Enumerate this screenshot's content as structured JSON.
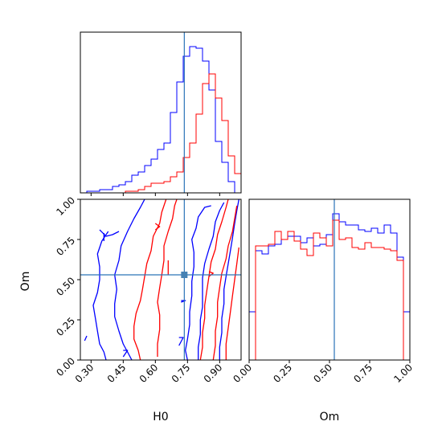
{
  "chart_data": [
    {
      "type": "histogram",
      "panel": "H0 marginal",
      "x": [
        0.25,
        0.28,
        0.31,
        0.34,
        0.37,
        0.4,
        0.43,
        0.46,
        0.49,
        0.52,
        0.55,
        0.58,
        0.61,
        0.64,
        0.67,
        0.7,
        0.73,
        0.76,
        0.79,
        0.82,
        0.85,
        0.88,
        0.91,
        0.94,
        0.97
      ],
      "xlim": [
        0.25,
        1.0
      ],
      "ylim": [
        0,
        1.0
      ],
      "truth_x": 0.735,
      "colors": {
        "series_a": "#0000ff",
        "series_b": "#ff0000",
        "truth": "#2a73b8"
      },
      "series": [
        {
          "values": [
            0.0,
            0.01,
            0.01,
            0.02,
            0.02,
            0.04,
            0.05,
            0.07,
            0.11,
            0.13,
            0.17,
            0.21,
            0.27,
            0.31,
            0.5,
            0.69,
            0.85,
            0.91,
            0.9,
            0.82,
            0.64,
            0.32,
            0.19,
            0.07,
            0.0
          ]
        },
        {
          "values": [
            0.0,
            0.0,
            0.0,
            0.0,
            0.0,
            0.0,
            0.0,
            0.01,
            0.01,
            0.02,
            0.04,
            0.06,
            0.06,
            0.07,
            0.1,
            0.13,
            0.22,
            0.31,
            0.49,
            0.68,
            0.74,
            0.59,
            0.45,
            0.23,
            0.12
          ]
        }
      ]
    },
    {
      "type": "contour",
      "panel": "H0 vs Om joint",
      "xlabel": "H0",
      "ylabel": "Om",
      "xlim": [
        0.25,
        1.0
      ],
      "ylim": [
        0.0,
        1.0
      ],
      "xticks": [
        "0.30",
        "0.45",
        "0.60",
        "0.75",
        "0.90"
      ],
      "xtick_values": [
        0.3,
        0.45,
        0.6,
        0.75,
        0.9
      ],
      "yticks": [
        "0.00",
        "0.25",
        "0.50",
        "0.75",
        "1.00"
      ],
      "ytick_values": [
        0.0,
        0.25,
        0.5,
        0.75,
        1.0
      ],
      "truth_point": [
        0.735,
        0.53
      ],
      "series": [
        {
          "color": "#0000ff",
          "contours": [
            [
              [
                0.28,
                0.15
              ],
              [
                0.27,
                0.12
              ]
            ],
            [
              [
                0.49,
                0.0
              ],
              [
                0.47,
                0.05
              ],
              [
                0.45,
                0.1
              ],
              [
                0.43,
                0.18
              ],
              [
                0.41,
                0.27
              ],
              [
                0.41,
                0.35
              ],
              [
                0.42,
                0.44
              ],
              [
                0.41,
                0.53
              ],
              [
                0.43,
                0.62
              ],
              [
                0.44,
                0.71
              ],
              [
                0.47,
                0.8
              ],
              [
                0.5,
                0.88
              ],
              [
                0.53,
                0.95
              ],
              [
                0.55,
                1.0
              ]
            ],
            [
              [
                0.37,
                0.0
              ],
              [
                0.36,
                0.05
              ],
              [
                0.34,
                0.1
              ],
              [
                0.33,
                0.18
              ],
              [
                0.32,
                0.26
              ],
              [
                0.31,
                0.34
              ],
              [
                0.33,
                0.42
              ],
              [
                0.34,
                0.5
              ],
              [
                0.34,
                0.58
              ],
              [
                0.33,
                0.66
              ],
              [
                0.35,
                0.74
              ],
              [
                0.38,
                0.8
              ]
            ],
            [
              [
                0.34,
                0.81
              ],
              [
                0.37,
                0.77
              ],
              [
                0.4,
                0.78
              ],
              [
                0.43,
                0.8
              ]
            ],
            [
              [
                0.36,
                0.74
              ],
              [
                0.36,
                0.79
              ]
            ],
            [
              [
                0.75,
                0.0
              ],
              [
                0.74,
                0.06
              ],
              [
                0.75,
                0.13
              ],
              [
                0.76,
                0.22
              ],
              [
                0.76,
                0.3
              ],
              [
                0.77,
                0.4
              ],
              [
                0.77,
                0.49
              ],
              [
                0.78,
                0.58
              ],
              [
                0.78,
                0.67
              ],
              [
                0.77,
                0.75
              ],
              [
                0.79,
                0.82
              ],
              [
                0.8,
                0.89
              ],
              [
                0.83,
                0.95
              ],
              [
                0.86,
                0.96
              ]
            ],
            [
              [
                0.8,
                0.0
              ],
              [
                0.8,
                0.08
              ],
              [
                0.81,
                0.16
              ],
              [
                0.81,
                0.25
              ],
              [
                0.82,
                0.33
              ],
              [
                0.82,
                0.42
              ],
              [
                0.82,
                0.51
              ],
              [
                0.83,
                0.6
              ],
              [
                0.85,
                0.69
              ],
              [
                0.87,
                0.77
              ],
              [
                0.88,
                0.86
              ],
              [
                0.9,
                0.93
              ],
              [
                0.92,
                0.98
              ]
            ],
            [
              [
                0.9,
                0.0
              ],
              [
                0.9,
                0.08
              ],
              [
                0.91,
                0.17
              ],
              [
                0.91,
                0.26
              ],
              [
                0.92,
                0.35
              ],
              [
                0.92,
                0.44
              ],
              [
                0.93,
                0.52
              ],
              [
                0.94,
                0.6
              ],
              [
                0.95,
                0.68
              ],
              [
                0.96,
                0.76
              ],
              [
                0.97,
                0.85
              ],
              [
                0.98,
                0.93
              ],
              [
                0.99,
                1.0
              ]
            ],
            [
              [
                0.72,
                0.36
              ],
              [
                0.74,
                0.37
              ],
              [
                0.72,
                0.37
              ]
            ],
            [
              [
                0.71,
                0.09
              ],
              [
                0.73,
                0.14
              ],
              [
                0.71,
                0.14
              ]
            ],
            [
              [
                0.45,
                0.02
              ],
              [
                0.47,
                0.06
              ],
              [
                0.45,
                0.06
              ]
            ]
          ]
        },
        {
          "color": "#ff0000",
          "contours": [
            [
              [
                0.53,
                0.0
              ],
              [
                0.52,
                0.06
              ],
              [
                0.5,
                0.13
              ],
              [
                0.5,
                0.21
              ],
              [
                0.51,
                0.29
              ],
              [
                0.53,
                0.37
              ],
              [
                0.54,
                0.44
              ],
              [
                0.55,
                0.52
              ],
              [
                0.56,
                0.6
              ],
              [
                0.58,
                0.68
              ],
              [
                0.59,
                0.77
              ],
              [
                0.62,
                0.85
              ],
              [
                0.63,
                0.92
              ],
              [
                0.65,
                1.0
              ]
            ],
            [
              [
                0.61,
                0.02
              ],
              [
                0.61,
                0.1
              ],
              [
                0.62,
                0.19
              ],
              [
                0.62,
                0.28
              ],
              [
                0.61,
                0.36
              ],
              [
                0.62,
                0.45
              ],
              [
                0.63,
                0.53
              ],
              [
                0.64,
                0.62
              ],
              [
                0.64,
                0.71
              ],
              [
                0.66,
                0.8
              ],
              [
                0.68,
                0.88
              ],
              [
                0.69,
                0.96
              ],
              [
                0.7,
                1.0
              ]
            ],
            [
              [
                0.66,
                0.53
              ],
              [
                0.66,
                0.62
              ]
            ],
            [
              [
                0.6,
                0.81
              ],
              [
                0.62,
                0.83
              ],
              [
                0.6,
                0.85
              ]
            ],
            [
              [
                0.81,
                0.0
              ],
              [
                0.82,
                0.08
              ],
              [
                0.82,
                0.17
              ],
              [
                0.83,
                0.26
              ],
              [
                0.83,
                0.34
              ],
              [
                0.84,
                0.43
              ],
              [
                0.85,
                0.52
              ],
              [
                0.86,
                0.61
              ],
              [
                0.88,
                0.69
              ],
              [
                0.89,
                0.78
              ],
              [
                0.91,
                0.86
              ],
              [
                0.93,
                0.95
              ],
              [
                0.94,
                1.0
              ]
            ],
            [
              [
                0.87,
                0.0
              ],
              [
                0.88,
                0.09
              ],
              [
                0.88,
                0.18
              ],
              [
                0.89,
                0.27
              ],
              [
                0.89,
                0.36
              ],
              [
                0.9,
                0.45
              ],
              [
                0.91,
                0.54
              ],
              [
                0.93,
                0.63
              ],
              [
                0.94,
                0.71
              ],
              [
                0.96,
                0.8
              ],
              [
                0.97,
                0.88
              ],
              [
                0.98,
                0.96
              ]
            ],
            [
              [
                0.93,
                0.0
              ],
              [
                0.93,
                0.1
              ],
              [
                0.94,
                0.2
              ],
              [
                0.95,
                0.3
              ],
              [
                0.96,
                0.4
              ],
              [
                0.97,
                0.5
              ],
              [
                0.98,
                0.6
              ],
              [
                0.99,
                0.7
              ]
            ],
            [
              [
                0.85,
                0.52
              ],
              [
                0.87,
                0.54
              ],
              [
                0.85,
                0.55
              ]
            ]
          ]
        }
      ]
    },
    {
      "type": "histogram",
      "panel": "Om marginal",
      "xlabel": "Om",
      "x": [
        0.0,
        0.04,
        0.08,
        0.12,
        0.16,
        0.2,
        0.24,
        0.28,
        0.32,
        0.36,
        0.4,
        0.44,
        0.48,
        0.52,
        0.56,
        0.6,
        0.64,
        0.68,
        0.72,
        0.76,
        0.8,
        0.84,
        0.88,
        0.92,
        0.96
      ],
      "xlim": [
        0.0,
        1.0
      ],
      "ylim": [
        0,
        1.0
      ],
      "xticks": [
        "0.00",
        "0.25",
        "0.50",
        "0.75",
        "1.00"
      ],
      "xtick_values": [
        0.0,
        0.25,
        0.5,
        0.75,
        1.0
      ],
      "truth_x": 0.53,
      "series": [
        {
          "color": "#0000ff",
          "values": [
            0.3,
            0.68,
            0.66,
            0.71,
            0.72,
            0.75,
            0.77,
            0.77,
            0.73,
            0.76,
            0.71,
            0.72,
            0.78,
            0.91,
            0.86,
            0.84,
            0.84,
            0.81,
            0.8,
            0.82,
            0.79,
            0.84,
            0.79,
            0.64,
            0.3
          ]
        },
        {
          "color": "#ff0000",
          "values": [
            0.0,
            0.71,
            0.71,
            0.72,
            0.8,
            0.75,
            0.8,
            0.74,
            0.69,
            0.65,
            0.79,
            0.76,
            0.71,
            0.87,
            0.75,
            0.76,
            0.7,
            0.69,
            0.73,
            0.7,
            0.7,
            0.69,
            0.68,
            0.62,
            0.0
          ]
        }
      ]
    }
  ]
}
